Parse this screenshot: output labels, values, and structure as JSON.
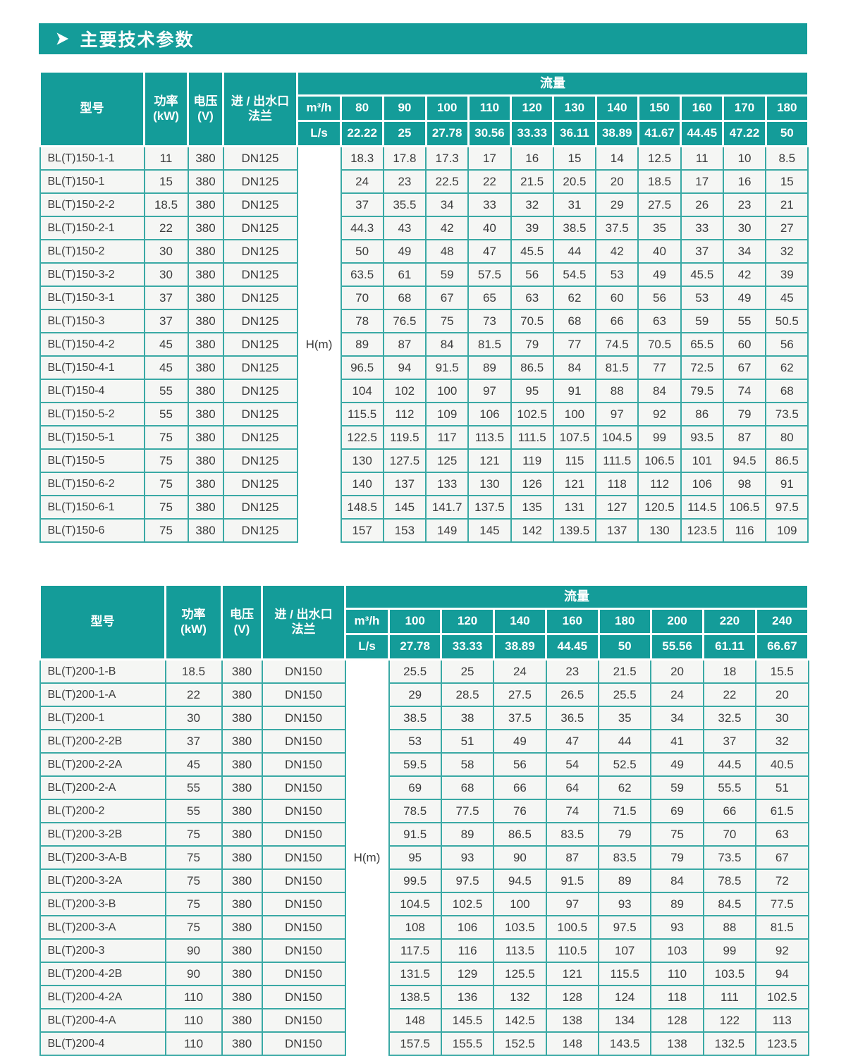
{
  "title": {
    "icon": "➤",
    "text": "主要技术参数"
  },
  "colors": {
    "teal": "#149c99",
    "cell_border": "#3aa9a5",
    "row_bg": "#f5f6f4",
    "header_text": "#ffffff",
    "body_text": "#3c3c3c"
  },
  "tables": [
    {
      "header": {
        "model_label": "型号",
        "power_label": [
          "功率",
          "(kW)"
        ],
        "voltage_label": [
          "电压",
          "(V)"
        ],
        "flange_label": [
          "进 / 出水口",
          "法兰"
        ],
        "flow_label": "流量",
        "unit_m3h": "m³/h",
        "unit_ls": "L/s",
        "flow_m3h": [
          80,
          90,
          100,
          110,
          120,
          130,
          140,
          150,
          160,
          170,
          180
        ],
        "flow_ls": [
          22.22,
          25,
          27.78,
          30.56,
          33.33,
          36.11,
          38.89,
          41.67,
          44.45,
          47.22,
          50
        ]
      },
      "h_label": "H(m)",
      "rows": [
        {
          "model": "BL(T)150-1-1",
          "power": 11,
          "voltage": 380,
          "flange": "DN125",
          "values": [
            18.3,
            17.8,
            17.3,
            17,
            16,
            15,
            14,
            12.5,
            11,
            10,
            8.5
          ]
        },
        {
          "model": "BL(T)150-1",
          "power": 15,
          "voltage": 380,
          "flange": "DN125",
          "values": [
            24,
            23,
            22.5,
            22,
            21.5,
            20.5,
            20,
            18.5,
            17,
            16,
            15
          ]
        },
        {
          "model": "BL(T)150-2-2",
          "power": 18.5,
          "voltage": 380,
          "flange": "DN125",
          "values": [
            37,
            35.5,
            34,
            33,
            32,
            31,
            29,
            27.5,
            26,
            23,
            21
          ]
        },
        {
          "model": "BL(T)150-2-1",
          "power": 22,
          "voltage": 380,
          "flange": "DN125",
          "values": [
            44.3,
            43,
            42,
            40,
            39,
            38.5,
            37.5,
            35,
            33,
            30,
            27
          ]
        },
        {
          "model": "BL(T)150-2",
          "power": 30,
          "voltage": 380,
          "flange": "DN125",
          "values": [
            50,
            49,
            48,
            47,
            45.5,
            44,
            42,
            40,
            37,
            34,
            32
          ]
        },
        {
          "model": "BL(T)150-3-2",
          "power": 30,
          "voltage": 380,
          "flange": "DN125",
          "values": [
            63.5,
            61,
            59,
            57.5,
            56,
            54.5,
            53,
            49,
            45.5,
            42,
            39
          ]
        },
        {
          "model": "BL(T)150-3-1",
          "power": 37,
          "voltage": 380,
          "flange": "DN125",
          "values": [
            70,
            68,
            67,
            65,
            63,
            62,
            60,
            56,
            53,
            49,
            45
          ]
        },
        {
          "model": "BL(T)150-3",
          "power": 37,
          "voltage": 380,
          "flange": "DN125",
          "values": [
            78,
            76.5,
            75,
            73,
            70.5,
            68,
            66,
            63,
            59,
            55,
            50.5
          ]
        },
        {
          "model": "BL(T)150-4-2",
          "power": 45,
          "voltage": 380,
          "flange": "DN125",
          "values": [
            89,
            87,
            84,
            81.5,
            79,
            77,
            74.5,
            70.5,
            65.5,
            60,
            56
          ]
        },
        {
          "model": "BL(T)150-4-1",
          "power": 45,
          "voltage": 380,
          "flange": "DN125",
          "values": [
            96.5,
            94,
            91.5,
            89,
            86.5,
            84,
            81.5,
            77,
            72.5,
            67,
            62
          ]
        },
        {
          "model": "BL(T)150-4",
          "power": 55,
          "voltage": 380,
          "flange": "DN125",
          "values": [
            104,
            102,
            100,
            97,
            95,
            91,
            88,
            84,
            79.5,
            74,
            68
          ]
        },
        {
          "model": "BL(T)150-5-2",
          "power": 55,
          "voltage": 380,
          "flange": "DN125",
          "values": [
            115.5,
            112,
            109,
            106,
            102.5,
            100,
            97,
            92,
            86,
            79,
            73.5
          ]
        },
        {
          "model": "BL(T)150-5-1",
          "power": 75,
          "voltage": 380,
          "flange": "DN125",
          "values": [
            122.5,
            119.5,
            117,
            113.5,
            111.5,
            107.5,
            104.5,
            99,
            93.5,
            87,
            80
          ]
        },
        {
          "model": "BL(T)150-5",
          "power": 75,
          "voltage": 380,
          "flange": "DN125",
          "values": [
            130,
            127.5,
            125,
            121,
            119,
            115,
            111.5,
            106.5,
            101,
            94.5,
            86.5
          ]
        },
        {
          "model": "BL(T)150-6-2",
          "power": 75,
          "voltage": 380,
          "flange": "DN125",
          "values": [
            140,
            137,
            133,
            130,
            126,
            121,
            118,
            112,
            106,
            98,
            91
          ]
        },
        {
          "model": "BL(T)150-6-1",
          "power": 75,
          "voltage": 380,
          "flange": "DN125",
          "values": [
            148.5,
            145,
            141.7,
            137.5,
            135,
            131,
            127,
            120.5,
            114.5,
            106.5,
            97.5
          ]
        },
        {
          "model": "BL(T)150-6",
          "power": 75,
          "voltage": 380,
          "flange": "DN125",
          "values": [
            157,
            153,
            149,
            145,
            142,
            139.5,
            137,
            130,
            123.5,
            116,
            109
          ]
        }
      ]
    },
    {
      "header": {
        "model_label": "型号",
        "power_label": [
          "功率",
          "(kW)"
        ],
        "voltage_label": [
          "电压",
          "(V)"
        ],
        "flange_label": [
          "进 / 出水口",
          "法兰"
        ],
        "flow_label": "流量",
        "unit_m3h": "m³/h",
        "unit_ls": "L/s",
        "flow_m3h": [
          100,
          120,
          140,
          160,
          180,
          200,
          220,
          240
        ],
        "flow_ls": [
          27.78,
          33.33,
          38.89,
          44.45,
          50,
          55.56,
          61.11,
          66.67
        ]
      },
      "h_label": "H(m)",
      "rows": [
        {
          "model": "BL(T)200-1-B",
          "power": 18.5,
          "voltage": 380,
          "flange": "DN150",
          "values": [
            25.5,
            25,
            24,
            23,
            21.5,
            20,
            18,
            15.5
          ]
        },
        {
          "model": "BL(T)200-1-A",
          "power": 22,
          "voltage": 380,
          "flange": "DN150",
          "values": [
            29,
            28.5,
            27.5,
            26.5,
            25.5,
            24,
            22,
            20
          ]
        },
        {
          "model": "BL(T)200-1",
          "power": 30,
          "voltage": 380,
          "flange": "DN150",
          "values": [
            38.5,
            38,
            37.5,
            36.5,
            35,
            34,
            32.5,
            30
          ]
        },
        {
          "model": "BL(T)200-2-2B",
          "power": 37,
          "voltage": 380,
          "flange": "DN150",
          "values": [
            53,
            51,
            49,
            47,
            44,
            41,
            37,
            32
          ]
        },
        {
          "model": "BL(T)200-2-2A",
          "power": 45,
          "voltage": 380,
          "flange": "DN150",
          "values": [
            59.5,
            58,
            56,
            54,
            52.5,
            49,
            44.5,
            40.5
          ]
        },
        {
          "model": "BL(T)200-2-A",
          "power": 55,
          "voltage": 380,
          "flange": "DN150",
          "values": [
            69,
            68,
            66,
            64,
            62,
            59,
            55.5,
            51
          ]
        },
        {
          "model": "BL(T)200-2",
          "power": 55,
          "voltage": 380,
          "flange": "DN150",
          "values": [
            78.5,
            77.5,
            76,
            74,
            71.5,
            69,
            66,
            61.5
          ]
        },
        {
          "model": "BL(T)200-3-2B",
          "power": 75,
          "voltage": 380,
          "flange": "DN150",
          "values": [
            91.5,
            89,
            86.5,
            83.5,
            79,
            75,
            70,
            63
          ]
        },
        {
          "model": "BL(T)200-3-A-B",
          "power": 75,
          "voltage": 380,
          "flange": "DN150",
          "values": [
            95,
            93,
            90,
            87,
            83.5,
            79,
            73.5,
            67
          ]
        },
        {
          "model": "BL(T)200-3-2A",
          "power": 75,
          "voltage": 380,
          "flange": "DN150",
          "values": [
            99.5,
            97.5,
            94.5,
            91.5,
            89,
            84,
            78.5,
            72
          ]
        },
        {
          "model": "BL(T)200-3-B",
          "power": 75,
          "voltage": 380,
          "flange": "DN150",
          "values": [
            104.5,
            102.5,
            100,
            97,
            93,
            89,
            84.5,
            77.5
          ]
        },
        {
          "model": "BL(T)200-3-A",
          "power": 75,
          "voltage": 380,
          "flange": "DN150",
          "values": [
            108,
            106,
            103.5,
            100.5,
            97.5,
            93,
            88,
            81.5
          ]
        },
        {
          "model": "BL(T)200-3",
          "power": 90,
          "voltage": 380,
          "flange": "DN150",
          "values": [
            117.5,
            116,
            113.5,
            110.5,
            107,
            103,
            99,
            92
          ]
        },
        {
          "model": "BL(T)200-4-2B",
          "power": 90,
          "voltage": 380,
          "flange": "DN150",
          "values": [
            131.5,
            129,
            125.5,
            121,
            115.5,
            110,
            103.5,
            94
          ]
        },
        {
          "model": "BL(T)200-4-2A",
          "power": 110,
          "voltage": 380,
          "flange": "DN150",
          "values": [
            138.5,
            136,
            132,
            128,
            124,
            118,
            111,
            102.5
          ]
        },
        {
          "model": "BL(T)200-4-A",
          "power": 110,
          "voltage": 380,
          "flange": "DN150",
          "values": [
            148,
            145.5,
            142.5,
            138,
            134,
            128,
            122,
            113
          ]
        },
        {
          "model": "BL(T)200-4",
          "power": 110,
          "voltage": 380,
          "flange": "DN150",
          "values": [
            157.5,
            155.5,
            152.5,
            148,
            143.5,
            138,
            132.5,
            123.5
          ]
        }
      ]
    }
  ]
}
